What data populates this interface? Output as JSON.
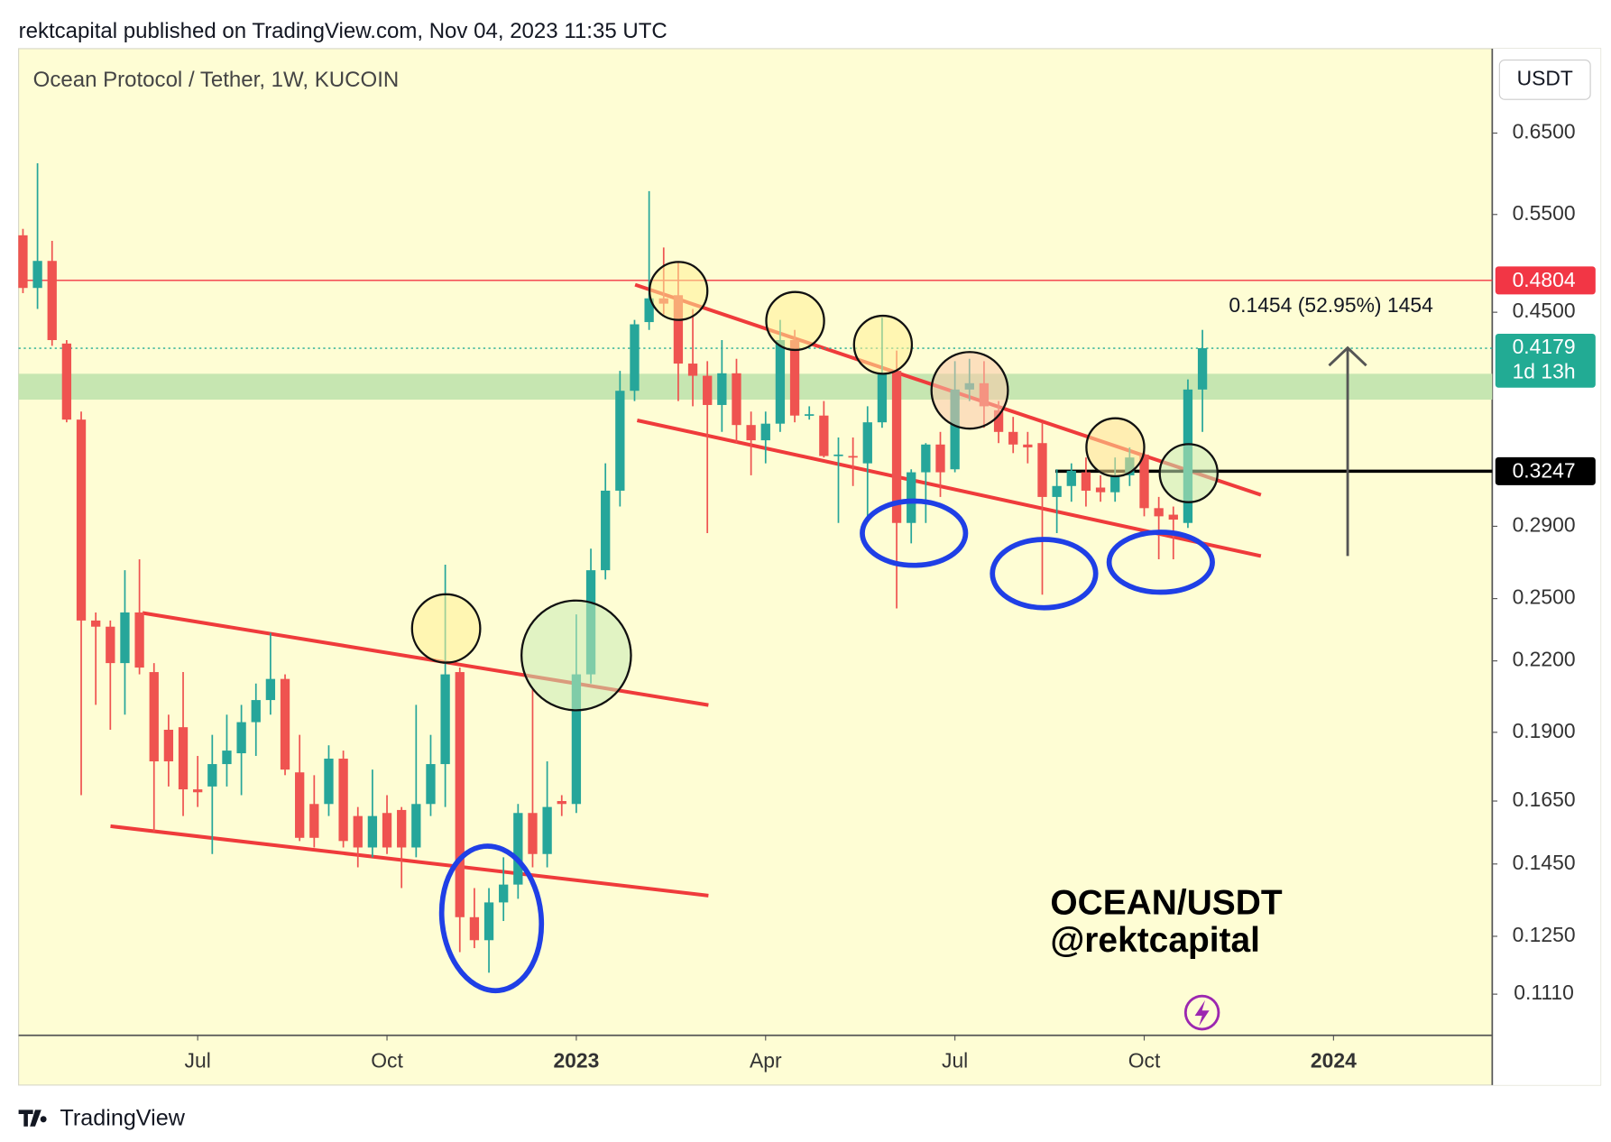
{
  "header": "rektcapital published on TradingView.com, Nov 04, 2023 11:35 UTC",
  "footer": "TradingView",
  "chart_data": {
    "type": "candlestick",
    "title": "Ocean Protocol / Tether, 1W, KUCOIN",
    "currency": "USDT",
    "watermark": [
      "OCEAN/USDT",
      "@rektcapital"
    ],
    "measure_label": "0.1454 (52.95%) 1454",
    "up_color": "#26a69a",
    "down_color": "#ef5350",
    "x": [
      0,
      1,
      2,
      3,
      4,
      5,
      6,
      7,
      8,
      9,
      10,
      11,
      12,
      13,
      14,
      15,
      16,
      17,
      18,
      19,
      20,
      21,
      22,
      23,
      24,
      25,
      26,
      27,
      28,
      29,
      30,
      31,
      32,
      33,
      34,
      35,
      36,
      37,
      38,
      39,
      40,
      41,
      42,
      43,
      44,
      45,
      46,
      47,
      48,
      49,
      50,
      51,
      52,
      53,
      54,
      55,
      56,
      57,
      58,
      59,
      60,
      61,
      62,
      63,
      64,
      65,
      66,
      67,
      68,
      69,
      70,
      71,
      72,
      73,
      74,
      75,
      76,
      77,
      78,
      79,
      80,
      81
    ],
    "open": [
      0.527,
      0.473,
      0.5,
      0.422,
      0.361,
      0.239,
      0.236,
      0.219,
      0.243,
      0.215,
      0.191,
      0.192,
      0.169,
      0.17,
      0.178,
      0.182,
      0.194,
      0.203,
      0.212,
      0.175,
      0.164,
      0.164,
      0.18,
      0.16,
      0.15,
      0.161,
      0.162,
      0.15,
      0.164,
      0.178,
      0.215,
      0.13,
      0.124,
      0.134,
      0.139,
      0.161,
      0.148,
      0.165,
      0.164,
      0.214,
      0.265,
      0.312,
      0.383,
      0.441,
      0.463,
      0.466,
      0.405,
      0.395,
      0.372,
      0.397,
      0.357,
      0.346,
      0.358,
      0.425,
      0.364,
      0.364,
      0.335,
      0.335,
      0.33,
      0.359,
      0.399,
      0.292,
      0.324,
      0.343,
      0.326,
      0.384,
      0.389,
      0.368,
      0.352,
      0.343,
      0.344,
      0.308,
      0.315,
      0.324,
      0.314,
      0.311,
      0.322,
      0.336,
      0.301,
      0.297,
      0.292,
      0.384
    ],
    "high": [
      0.534,
      0.611,
      0.521,
      0.425,
      0.367,
      0.243,
      0.239,
      0.265,
      0.271,
      0.219,
      0.197,
      0.215,
      0.181,
      0.189,
      0.197,
      0.201,
      0.21,
      0.233,
      0.214,
      0.189,
      0.174,
      0.185,
      0.183,
      0.163,
      0.176,
      0.167,
      0.163,
      0.201,
      0.189,
      0.268,
      0.217,
      0.138,
      0.138,
      0.147,
      0.164,
      0.208,
      0.179,
      0.167,
      0.242,
      0.277,
      0.33,
      0.399,
      0.443,
      0.577,
      0.514,
      0.498,
      0.453,
      0.407,
      0.425,
      0.409,
      0.367,
      0.367,
      0.443,
      0.434,
      0.371,
      0.375,
      0.348,
      0.348,
      0.371,
      0.445,
      0.416,
      0.326,
      0.344,
      0.352,
      0.407,
      0.409,
      0.407,
      0.375,
      0.363,
      0.352,
      0.359,
      0.326,
      0.33,
      0.334,
      0.322,
      0.334,
      0.341,
      0.341,
      0.308,
      0.302,
      0.392,
      0.434
    ],
    "low": [
      0.468,
      0.453,
      0.42,
      0.359,
      0.167,
      0.201,
      0.191,
      0.197,
      0.214,
      0.155,
      0.17,
      0.16,
      0.163,
      0.148,
      0.17,
      0.167,
      0.181,
      0.197,
      0.174,
      0.152,
      0.15,
      0.16,
      0.15,
      0.144,
      0.147,
      0.148,
      0.138,
      0.147,
      0.16,
      0.163,
      0.121,
      0.122,
      0.116,
      0.129,
      0.135,
      0.144,
      0.144,
      0.16,
      0.161,
      0.21,
      0.26,
      0.302,
      0.375,
      0.434,
      0.448,
      0.375,
      0.371,
      0.286,
      0.352,
      0.344,
      0.322,
      0.33,
      0.352,
      0.359,
      0.361,
      0.334,
      0.292,
      0.315,
      0.296,
      0.355,
      0.245,
      0.28,
      0.292,
      0.308,
      0.324,
      0.375,
      0.355,
      0.344,
      0.337,
      0.33,
      0.252,
      0.286,
      0.305,
      0.302,
      0.305,
      0.305,
      0.315,
      0.296,
      0.271,
      0.271,
      0.289,
      0.352
    ],
    "close": [
      0.473,
      0.5,
      0.425,
      0.361,
      0.239,
      0.236,
      0.219,
      0.243,
      0.217,
      0.179,
      0.179,
      0.169,
      0.168,
      0.178,
      0.183,
      0.194,
      0.203,
      0.212,
      0.176,
      0.153,
      0.153,
      0.18,
      0.152,
      0.15,
      0.16,
      0.15,
      0.15,
      0.164,
      0.178,
      0.214,
      0.13,
      0.124,
      0.134,
      0.139,
      0.161,
      0.148,
      0.163,
      0.164,
      0.214,
      0.265,
      0.312,
      0.383,
      0.439,
      0.463,
      0.458,
      0.405,
      0.395,
      0.372,
      0.397,
      0.357,
      0.346,
      0.358,
      0.425,
      0.364,
      0.365,
      0.335,
      0.336,
      0.334,
      0.359,
      0.397,
      0.292,
      0.324,
      0.343,
      0.324,
      0.384,
      0.389,
      0.371,
      0.352,
      0.343,
      0.341,
      0.308,
      0.315,
      0.325,
      0.312,
      0.311,
      0.322,
      0.334,
      0.301,
      0.296,
      0.294,
      0.384,
      0.418
    ],
    "xlim": [
      -0.3,
      100.9
    ],
    "xticks": [
      {
        "value": 12,
        "label": "Jul"
      },
      {
        "value": 25,
        "label": "Oct"
      },
      {
        "value": 38,
        "label": "2023"
      },
      {
        "value": 51,
        "label": "Apr"
      },
      {
        "value": 64,
        "label": "Jul"
      },
      {
        "value": 77,
        "label": "Oct"
      },
      {
        "value": 90,
        "label": "2024"
      }
    ],
    "ylim": [
      0.102,
      0.773
    ],
    "log_scale": true,
    "yticks": [
      {
        "value": 0.65,
        "label": "0.6500"
      },
      {
        "value": 0.55,
        "label": "0.5500"
      },
      {
        "value": 0.45,
        "label": "0.4500"
      },
      {
        "value": 0.29,
        "label": "0.2900"
      },
      {
        "value": 0.25,
        "label": "0.2500"
      },
      {
        "value": 0.22,
        "label": "0.2200"
      },
      {
        "value": 0.19,
        "label": "0.1900"
      },
      {
        "value": 0.165,
        "label": "0.1650"
      },
      {
        "value": 0.145,
        "label": "0.1450"
      },
      {
        "value": 0.125,
        "label": "0.1250"
      },
      {
        "value": 0.111,
        "label": "0.1110"
      }
    ],
    "grid": false,
    "price_lines": [
      {
        "value": 0.4804,
        "color": "#f23645",
        "style": "solid"
      },
      {
        "value": 0.4179,
        "color": "#22ab94",
        "style": "dotted",
        "countdown": "1d 13h"
      },
      {
        "value": 0.3247,
        "color": "#000000",
        "style": "thick"
      }
    ]
  }
}
